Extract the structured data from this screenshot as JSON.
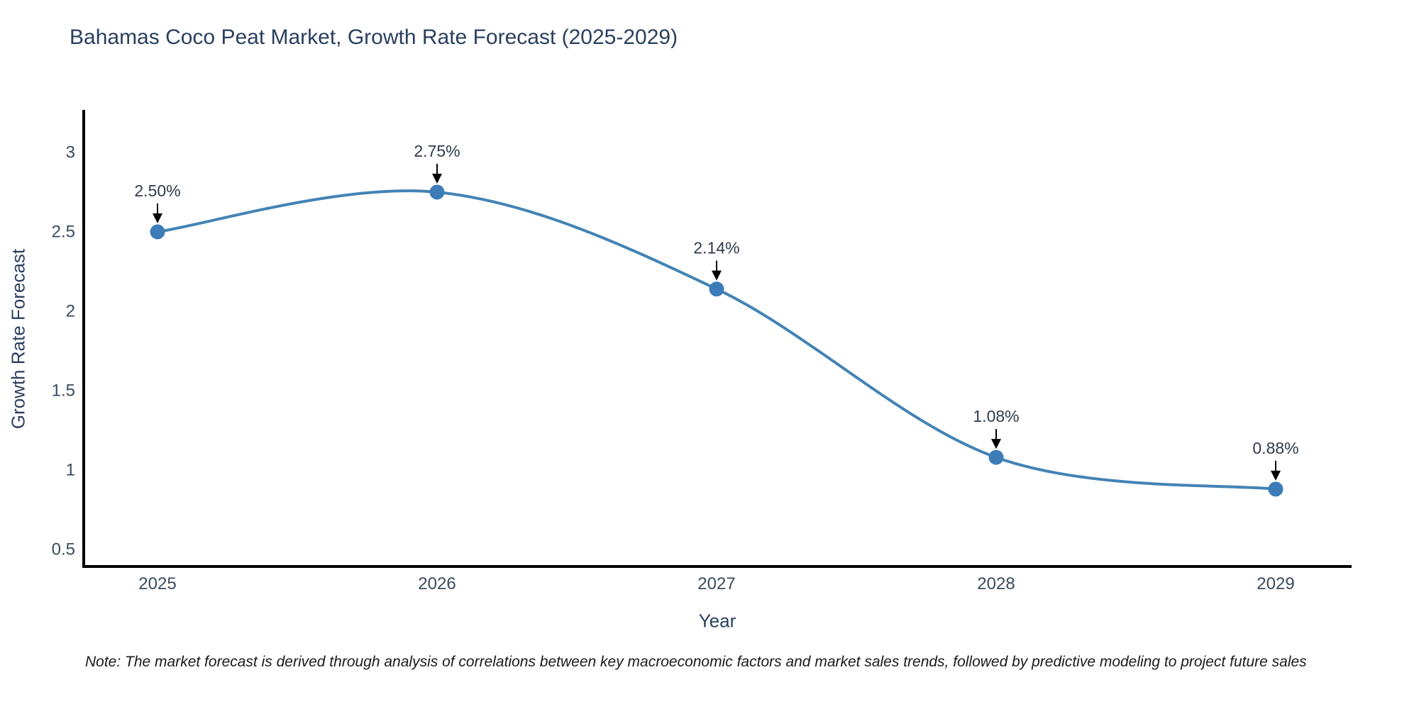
{
  "note": "Note: The market forecast is derived through analysis of correlations between key macroeconomic factors and market sales trends, followed by predictive modeling to project future sales",
  "chart_data": {
    "type": "line",
    "title": "Bahamas Coco Peat Market, Growth Rate Forecast (2025-2029)",
    "xlabel": "Year",
    "ylabel": "Growth Rate Forecast",
    "x": [
      2025,
      2026,
      2027,
      2028,
      2029
    ],
    "values": [
      2.5,
      2.75,
      2.14,
      1.08,
      0.88
    ],
    "point_labels": [
      "2.50%",
      "2.75%",
      "2.14%",
      "1.08%",
      "0.88%"
    ],
    "yticks": [
      0.5,
      1,
      1.5,
      2,
      2.5,
      3
    ],
    "ylim": [
      0.39,
      3.37
    ],
    "grid": false,
    "legend_position": "none",
    "line_style": "smooth-spline",
    "annotation_style": "label-with-down-arrow",
    "colors": {
      "line": "#4383b4",
      "marker": "#3c7cb8",
      "axis": "#000000",
      "arrow": "#000000",
      "title_text": "#2a3f5f",
      "tick_text": "#3b4a5e",
      "annotation_text": "#2f3b4c",
      "note_text": "#1a1a1a"
    }
  }
}
